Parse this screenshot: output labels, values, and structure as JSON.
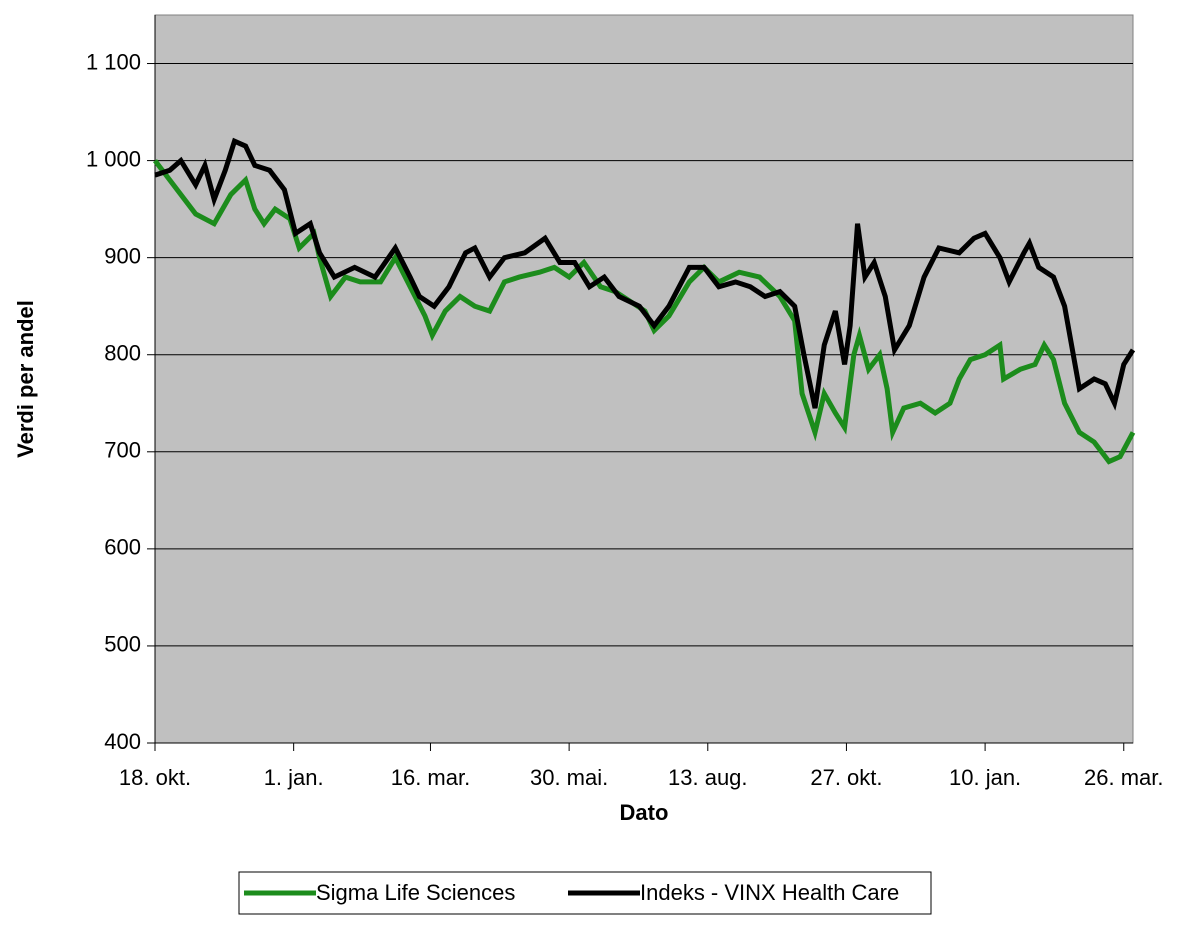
{
  "chart_data": {
    "type": "line",
    "xlabel": "Dato",
    "ylabel": "Verdi per andel",
    "xlim": [
      0,
      529
    ],
    "ylim": [
      400,
      1150
    ],
    "xticks": [
      {
        "value": 0,
        "label": "18. okt."
      },
      {
        "value": 75,
        "label": "1. jan."
      },
      {
        "value": 149,
        "label": "16. mar."
      },
      {
        "value": 224,
        "label": "30. mai."
      },
      {
        "value": 299,
        "label": "13. aug."
      },
      {
        "value": 374,
        "label": "27. okt."
      },
      {
        "value": 449,
        "label": "10. jan."
      },
      {
        "value": 524,
        "label": "26. mar."
      }
    ],
    "yticks": [
      400,
      500,
      600,
      700,
      800,
      900,
      {
        "value": 1000,
        "label": "1 000"
      },
      {
        "value": 1100,
        "label": "1 100"
      }
    ],
    "grid": true,
    "legend": "bottom",
    "series": [
      {
        "name": "Sigma Life Sciences",
        "color": "#1c8c1c",
        "x": [
          0,
          22,
          32,
          41,
          49,
          54,
          59,
          65,
          73,
          78,
          86,
          89,
          95,
          103,
          111,
          122,
          130,
          138,
          146,
          150,
          157,
          165,
          173,
          181,
          189,
          197,
          208,
          216,
          224,
          232,
          241,
          249,
          257,
          265,
          270,
          278,
          289,
          297,
          305,
          316,
          327,
          338,
          346,
          350,
          357,
          362,
          368,
          373,
          378,
          381,
          386,
          392,
          396,
          399,
          405,
          414,
          422,
          430,
          435,
          441,
          449,
          457,
          459,
          468,
          476,
          481,
          486,
          492,
          500,
          508,
          516,
          522,
          529
        ],
        "values": [
          1000,
          945,
          935,
          965,
          980,
          950,
          935,
          950,
          940,
          910,
          925,
          900,
          860,
          880,
          875,
          875,
          900,
          870,
          840,
          820,
          845,
          860,
          850,
          845,
          875,
          880,
          885,
          890,
          880,
          895,
          870,
          865,
          855,
          845,
          825,
          840,
          875,
          890,
          875,
          885,
          880,
          860,
          835,
          760,
          720,
          760,
          740,
          725,
          800,
          820,
          785,
          800,
          765,
          720,
          745,
          750,
          740,
          750,
          775,
          795,
          800,
          810,
          775,
          785,
          790,
          810,
          795,
          750,
          720,
          710,
          690,
          695,
          720
        ]
      },
      {
        "name": "Indeks - VINX Health Care",
        "color": "#000000",
        "x": [
          0,
          8,
          14,
          22,
          27,
          32,
          38,
          43,
          49,
          54,
          62,
          70,
          76,
          84,
          89,
          97,
          108,
          119,
          130,
          138,
          143,
          151,
          159,
          168,
          173,
          181,
          189,
          200,
          211,
          219,
          227,
          235,
          243,
          251,
          262,
          270,
          278,
          289,
          297,
          305,
          314,
          322,
          330,
          338,
          346,
          351,
          357,
          362,
          368,
          373,
          376,
          380,
          384,
          389,
          395,
          400,
          408,
          416,
          424,
          435,
          443,
          449,
          457,
          462,
          470,
          473,
          478,
          486,
          492,
          500,
          508,
          514,
          519,
          524,
          529
        ],
        "values": [
          985,
          990,
          1000,
          975,
          995,
          960,
          990,
          1020,
          1015,
          995,
          990,
          970,
          925,
          935,
          905,
          880,
          890,
          880,
          910,
          880,
          860,
          850,
          870,
          905,
          910,
          880,
          900,
          905,
          920,
          895,
          895,
          870,
          880,
          860,
          850,
          830,
          850,
          890,
          890,
          870,
          875,
          870,
          860,
          865,
          850,
          800,
          745,
          810,
          845,
          790,
          830,
          935,
          880,
          895,
          860,
          805,
          830,
          880,
          910,
          905,
          920,
          925,
          900,
          875,
          905,
          915,
          890,
          880,
          850,
          765,
          775,
          770,
          750,
          790,
          805
        ]
      }
    ]
  }
}
